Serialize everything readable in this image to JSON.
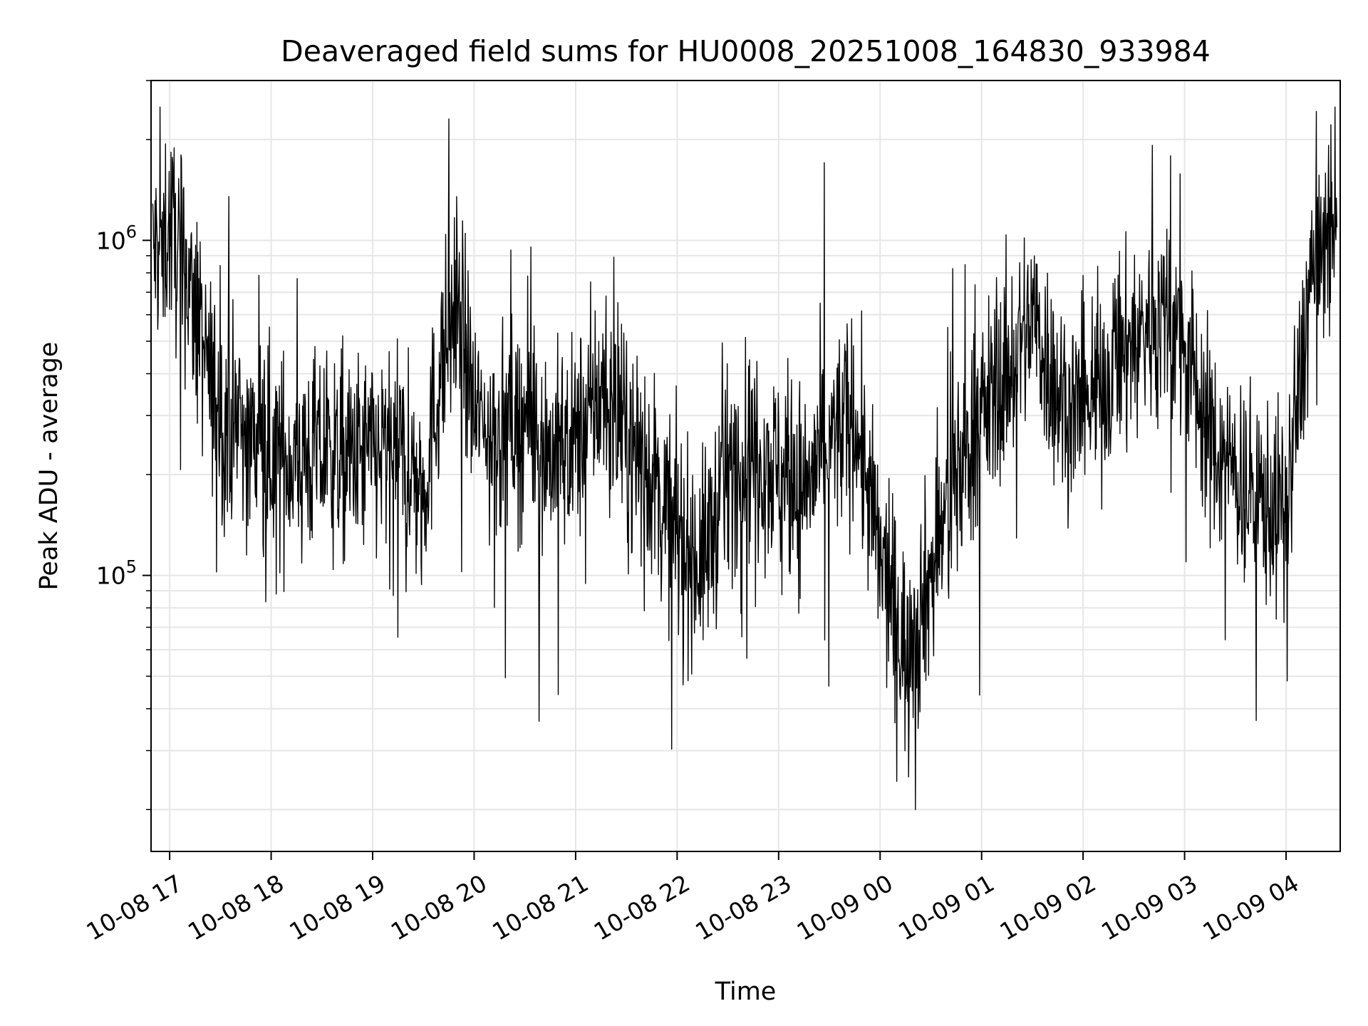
{
  "chart_data": {
    "type": "line",
    "title": "Deaveraged field sums for HU0008_20251008_164830_933984",
    "xlabel": "Time",
    "ylabel": "Peak ADU - average",
    "yscale": "log",
    "ylim": [
      15000,
      3000000
    ],
    "xlim": [
      "2025-10-08 16:49",
      "2025-10-09 04:32"
    ],
    "grid": true,
    "line_color": "#000000",
    "grid_color": "#e6e6e6",
    "x_ticks": [
      "2025-10-08 17:00",
      "2025-10-08 18:00",
      "2025-10-08 19:00",
      "2025-10-08 20:00",
      "2025-10-08 21:00",
      "2025-10-08 22:00",
      "2025-10-08 23:00",
      "2025-10-09 00:00",
      "2025-10-09 01:00",
      "2025-10-09 02:00",
      "2025-10-09 03:00",
      "2025-10-09 04:00"
    ],
    "x_tick_labels": [
      "10-08 17",
      "10-08 18",
      "10-08 19",
      "10-08 20",
      "10-08 21",
      "10-08 22",
      "10-08 23",
      "10-09 00",
      "10-09 01",
      "10-09 02",
      "10-09 03",
      "10-09 04"
    ],
    "y_major_ticks": [
      100000,
      1000000
    ],
    "y_tick_labels": [
      {
        "base": "10",
        "exp": "5"
      },
      {
        "base": "10",
        "exp": "6"
      }
    ],
    "series": [
      {
        "x": [
          "2025-10-08 16:50",
          "2025-10-08 17:00",
          "2025-10-08 17:10",
          "2025-10-08 17:20",
          "2025-10-08 17:30",
          "2025-10-08 17:45",
          "2025-10-08 18:00",
          "2025-10-08 18:15",
          "2025-10-08 18:30",
          "2025-10-08 18:45",
          "2025-10-08 19:00",
          "2025-10-08 19:15",
          "2025-10-08 19:30",
          "2025-10-08 19:40",
          "2025-10-08 19:50",
          "2025-10-08 20:00",
          "2025-10-08 20:15",
          "2025-10-08 20:30",
          "2025-10-08 20:45",
          "2025-10-08 21:00",
          "2025-10-08 21:15",
          "2025-10-08 21:30",
          "2025-10-08 21:45",
          "2025-10-08 22:00",
          "2025-10-08 22:15",
          "2025-10-08 22:30",
          "2025-10-08 22:45",
          "2025-10-08 23:00",
          "2025-10-08 23:15",
          "2025-10-08 23:30",
          "2025-10-08 23:45",
          "2025-10-09 00:00",
          "2025-10-09 00:15",
          "2025-10-09 00:30",
          "2025-10-09 00:45",
          "2025-10-09 01:00",
          "2025-10-09 01:15",
          "2025-10-09 01:30",
          "2025-10-09 01:45",
          "2025-10-09 02:00",
          "2025-10-09 02:15",
          "2025-10-09 02:30",
          "2025-10-09 02:45",
          "2025-10-09 03:00",
          "2025-10-09 03:15",
          "2025-10-09 03:30",
          "2025-10-09 03:45",
          "2025-10-09 04:00",
          "2025-10-09 04:15",
          "2025-10-09 04:30"
        ],
        "y": [
          900000,
          1100000,
          800000,
          450000,
          300000,
          260000,
          230000,
          220000,
          230000,
          220000,
          230000,
          230000,
          180000,
          400000,
          700000,
          300000,
          260000,
          300000,
          230000,
          250000,
          350000,
          250000,
          200000,
          130000,
          110000,
          200000,
          250000,
          200000,
          180000,
          250000,
          300000,
          110000,
          60000,
          100000,
          200000,
          300000,
          400000,
          600000,
          350000,
          300000,
          400000,
          500000,
          600000,
          500000,
          250000,
          200000,
          170000,
          150000,
          800000,
          1100000
        ]
      }
    ]
  }
}
